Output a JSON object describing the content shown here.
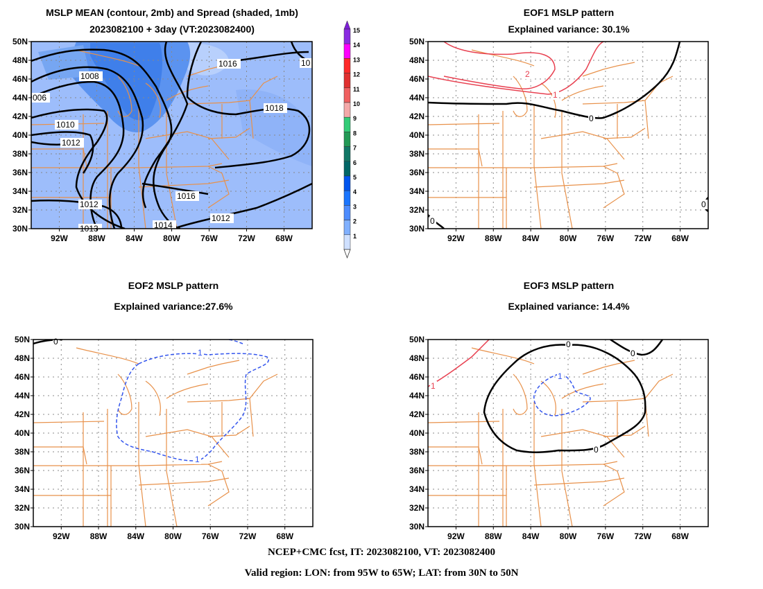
{
  "panels": [
    {
      "id": "mean",
      "title_line1": "MSLP MEAN (contour, 2mb) and Spread (shaded, 1mb)",
      "title_line2": "2023082100 + 3day (VT:2023082400)",
      "contour_labels": [
        "1008",
        "006",
        "1010",
        "1012",
        "1012",
        "1013",
        "1014",
        "1016",
        "1016",
        "1018",
        "1012",
        "10"
      ]
    },
    {
      "id": "eof1",
      "title_line1": "EOF1 MSLP pattern",
      "title_line2": "Explained variance: 30.1%",
      "contour_labels": [
        "2",
        "1",
        "0",
        "0",
        "0"
      ]
    },
    {
      "id": "eof2",
      "title_line1": "EOF2 MSLP pattern",
      "title_line2": "Explained variance:27.6%",
      "contour_labels": [
        "0",
        "1",
        "1"
      ]
    },
    {
      "id": "eof3",
      "title_line1": "EOF3 MSLP pattern",
      "title_line2": "Explained variance: 14.4%",
      "contour_labels": [
        "1",
        "0",
        "0",
        "0",
        "1"
      ]
    }
  ],
  "axes": {
    "lat_ticks": [
      "50N",
      "48N",
      "46N",
      "44N",
      "42N",
      "40N",
      "38N",
      "36N",
      "34N",
      "32N",
      "30N"
    ],
    "lon_ticks": [
      "92W",
      "88W",
      "84W",
      "80W",
      "76W",
      "72W",
      "68W"
    ]
  },
  "colorbar": {
    "labels": [
      "15",
      "14",
      "13",
      "12",
      "11",
      "10",
      "9",
      "8",
      "7",
      "6",
      "5",
      "4",
      "3",
      "2",
      "1"
    ],
    "colors": [
      "#8a2be2",
      "#ff00ff",
      "#ff2a2a",
      "#e03030",
      "#f06060",
      "#f4a9a9",
      "#33cc77",
      "#229955",
      "#117766",
      "#006666",
      "#0055ee",
      "#1a75ff",
      "#4d8cff",
      "#80b0ff",
      "#cfe0ff"
    ]
  },
  "footer": {
    "line1": "NCEP+CMC fcst, IT: 2023082100, VT: 2023082400",
    "line2": "Valid region: LON: from 95W to 65W; LAT: from 30N to 50N"
  }
}
